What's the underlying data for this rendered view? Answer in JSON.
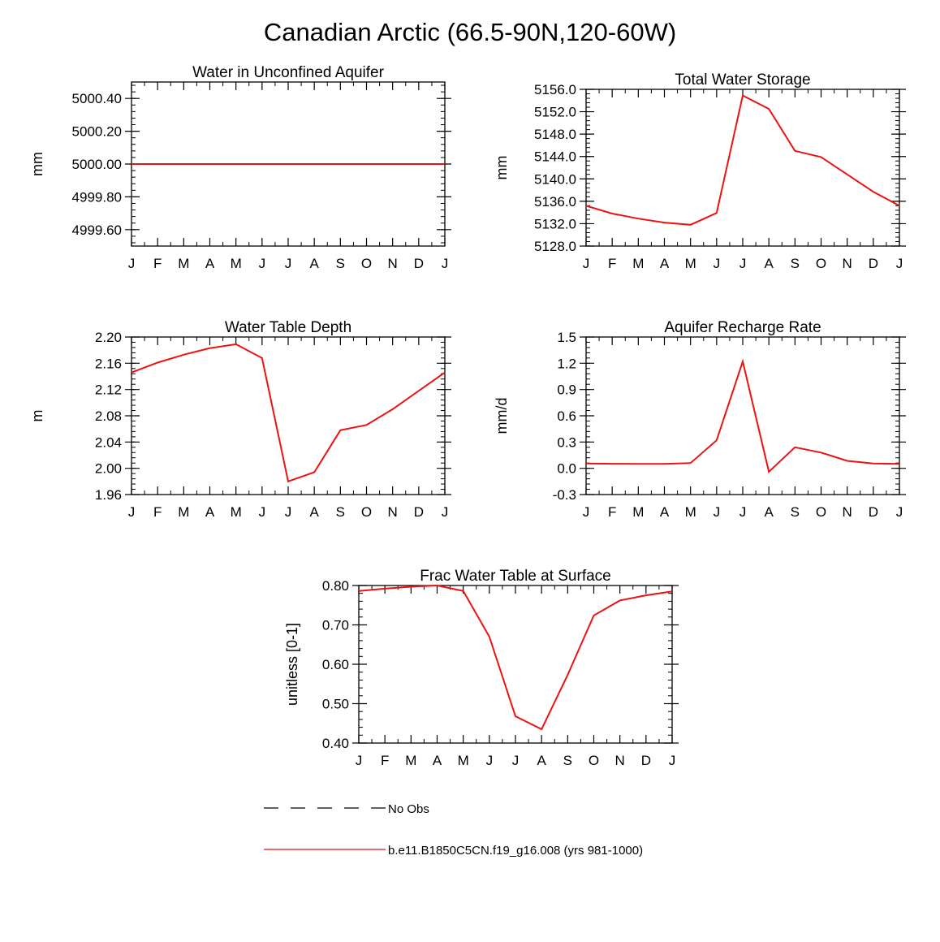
{
  "title": "Canadian Arctic (66.5-90N,120-60W)",
  "months": [
    "J",
    "F",
    "M",
    "A",
    "M",
    "J",
    "J",
    "A",
    "S",
    "O",
    "N",
    "D",
    "J"
  ],
  "colors": {
    "model": "#ee1111",
    "obs": "#000000",
    "axis": "#000000"
  },
  "chart_data": [
    {
      "type": "line",
      "title": "Water in Unconfined Aquifer",
      "ylabel": "mm",
      "ylim": [
        4999.5,
        5000.5
      ],
      "yticks": [
        "4999.60",
        "4999.80",
        "5000.00",
        "5000.20",
        "5000.40"
      ],
      "ytick_values": [
        4999.6,
        4999.8,
        5000.0,
        5000.2,
        5000.4
      ],
      "series": [
        {
          "values": [
            5000,
            5000,
            5000,
            5000,
            5000,
            5000,
            5000,
            5000,
            5000,
            5000,
            5000,
            5000,
            5000
          ]
        }
      ]
    },
    {
      "type": "line",
      "title": "Total Water Storage",
      "ylabel": "mm",
      "ylim": [
        5128.0,
        5156.0
      ],
      "yticks": [
        "5128.0",
        "5132.0",
        "5136.0",
        "5140.0",
        "5144.0",
        "5148.0",
        "5152.0",
        "5156.0"
      ],
      "ytick_values": [
        5128,
        5132,
        5136,
        5140,
        5144,
        5148,
        5152,
        5156
      ],
      "series": [
        {
          "values": [
            5135.2,
            5133.8,
            5132.9,
            5132.2,
            5131.8,
            5133.9,
            5154.9,
            5152.5,
            5145.0,
            5143.9,
            5140.8,
            5137.7,
            5135.2
          ]
        }
      ]
    },
    {
      "type": "line",
      "title": "Water Table Depth",
      "ylabel": "m",
      "ylim": [
        1.96,
        2.2
      ],
      "yticks": [
        "1.96",
        "2.00",
        "2.04",
        "2.08",
        "2.12",
        "2.16",
        "2.20"
      ],
      "ytick_values": [
        1.96,
        2.0,
        2.04,
        2.08,
        2.12,
        2.16,
        2.2
      ],
      "series": [
        {
          "values": [
            2.146,
            2.161,
            2.173,
            2.183,
            2.189,
            2.168,
            1.98,
            1.994,
            2.058,
            2.066,
            2.09,
            2.118,
            2.146
          ]
        }
      ]
    },
    {
      "type": "line",
      "title": "Aquifer Recharge Rate",
      "ylabel": "mm/d",
      "ylim": [
        -0.3,
        1.5
      ],
      "yticks": [
        "-0.3",
        "0.0",
        "0.3",
        "0.6",
        "0.9",
        "1.2",
        "1.5"
      ],
      "ytick_values": [
        -0.3,
        0.0,
        0.3,
        0.6,
        0.9,
        1.2,
        1.5
      ],
      "series": [
        {
          "values": [
            0.055,
            0.052,
            0.05,
            0.05,
            0.06,
            0.32,
            1.22,
            -0.04,
            0.24,
            0.18,
            0.085,
            0.055,
            0.05
          ]
        }
      ]
    },
    {
      "type": "line",
      "title": "Frac Water Table at Surface",
      "ylabel": "unitless [0-1]",
      "ylim": [
        0.4,
        0.8
      ],
      "yticks": [
        "0.40",
        "0.50",
        "0.60",
        "0.70",
        "0.80"
      ],
      "ytick_values": [
        0.4,
        0.5,
        0.6,
        0.7,
        0.8
      ],
      "series": [
        {
          "values": [
            0.786,
            0.792,
            0.797,
            0.8,
            0.786,
            0.67,
            0.468,
            0.435,
            0.573,
            0.724,
            0.762,
            0.775,
            0.785
          ]
        }
      ]
    }
  ],
  "legend": [
    {
      "label": "No Obs",
      "style": "dashed"
    },
    {
      "label": "b.e11.B1850C5CN.f19_g16.008 (yrs 981-1000)",
      "style": "solid"
    }
  ]
}
